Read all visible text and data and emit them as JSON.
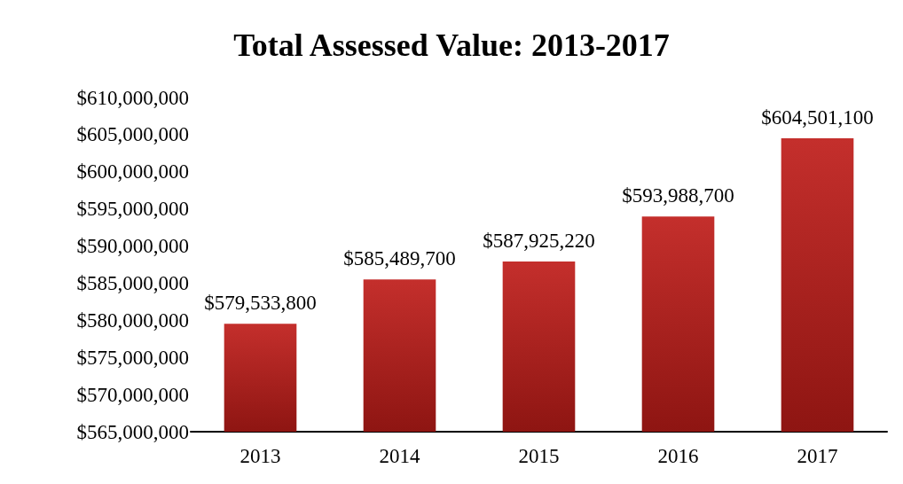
{
  "chart_data": {
    "type": "bar",
    "title": "Total Assessed Value: 2013-2017",
    "categories": [
      "2013",
      "2014",
      "2015",
      "2016",
      "2017"
    ],
    "values": [
      579533800,
      585489700,
      587925220,
      593988700,
      604501100
    ],
    "value_labels": [
      "$579,533,800",
      "$585,489,700",
      "$587,925,220",
      "$593,988,700",
      "$604,501,100"
    ],
    "color": "#c42f2c",
    "ylim": [
      565000000,
      610000000
    ],
    "yticks": [
      {
        "value": 565000000,
        "label": "$565,000,000"
      },
      {
        "value": 570000000,
        "label": "$570,000,000"
      },
      {
        "value": 575000000,
        "label": "$575,000,000"
      },
      {
        "value": 580000000,
        "label": "$580,000,000"
      },
      {
        "value": 585000000,
        "label": "$585,000,000"
      },
      {
        "value": 590000000,
        "label": "$590,000,000"
      },
      {
        "value": 595000000,
        "label": "$595,000,000"
      },
      {
        "value": 600000000,
        "label": "$600,000,000"
      },
      {
        "value": 605000000,
        "label": "$605,000,000"
      },
      {
        "value": 610000000,
        "label": "$610,000,000"
      }
    ],
    "grid": false
  }
}
